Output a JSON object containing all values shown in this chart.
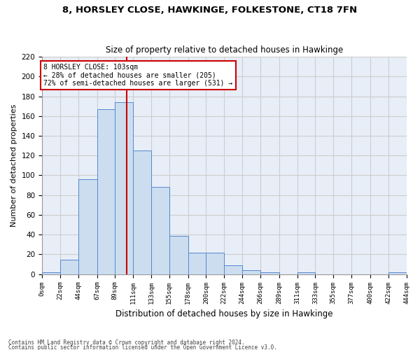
{
  "title": "8, HORSLEY CLOSE, HAWKINGE, FOLKESTONE, CT18 7FN",
  "subtitle": "Size of property relative to detached houses in Hawkinge",
  "xlabel": "Distribution of detached houses by size in Hawkinge",
  "ylabel": "Number of detached properties",
  "bin_labels": [
    "0sqm",
    "22sqm",
    "44sqm",
    "67sqm",
    "89sqm",
    "111sqm",
    "133sqm",
    "155sqm",
    "178sqm",
    "200sqm",
    "222sqm",
    "244sqm",
    "266sqm",
    "289sqm",
    "311sqm",
    "333sqm",
    "355sqm",
    "377sqm",
    "400sqm",
    "422sqm",
    "444sqm"
  ],
  "bar_heights": [
    2,
    15,
    96,
    167,
    174,
    125,
    88,
    39,
    22,
    22,
    9,
    4,
    2,
    0,
    2,
    0,
    0,
    0,
    0,
    2
  ],
  "bar_color": "#ccddf0",
  "bar_edge_color": "#5588cc",
  "property_line_x": 103,
  "bin_edges": [
    0,
    22,
    44,
    67,
    89,
    111,
    133,
    155,
    178,
    200,
    222,
    244,
    266,
    289,
    311,
    333,
    355,
    377,
    400,
    422,
    444
  ],
  "annotation_text": "8 HORSLEY CLOSE: 103sqm\n← 28% of detached houses are smaller (205)\n72% of semi-detached houses are larger (531) →",
  "annotation_box_color": "#ffffff",
  "annotation_box_edge": "#cc0000",
  "vline_color": "#cc0000",
  "ylim": [
    0,
    220
  ],
  "yticks": [
    0,
    20,
    40,
    60,
    80,
    100,
    120,
    140,
    160,
    180,
    200,
    220
  ],
  "footnote1": "Contains HM Land Registry data © Crown copyright and database right 2024.",
  "footnote2": "Contains public sector information licensed under the Open Government Licence v3.0.",
  "grid_color": "#cccccc",
  "background_color": "#e8eef8"
}
